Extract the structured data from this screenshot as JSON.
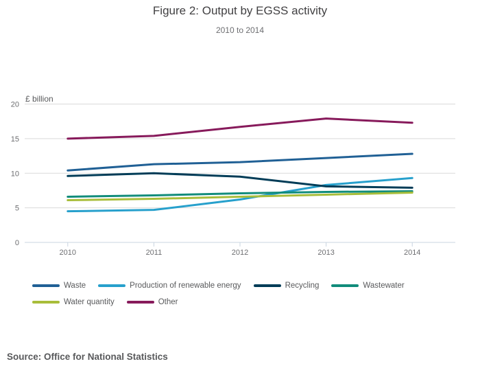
{
  "header": {
    "title": "Figure 2: Output by EGSS activity",
    "subtitle": "2010 to 2014"
  },
  "source": {
    "label": "Source: Office for National Statistics"
  },
  "chart_data": {
    "type": "line",
    "x": [
      2010,
      2011,
      2012,
      2013,
      2014
    ],
    "series": [
      {
        "name": "Waste",
        "color": "#206095",
        "values": [
          10.4,
          11.3,
          11.6,
          12.2,
          12.8
        ]
      },
      {
        "name": "Production of renewable energy",
        "color": "#27A0CC",
        "values": [
          4.5,
          4.7,
          6.2,
          8.3,
          9.3
        ]
      },
      {
        "name": "Recycling",
        "color": "#003C57",
        "values": [
          9.6,
          10.0,
          9.5,
          8.1,
          7.9
        ]
      },
      {
        "name": "Wastewater",
        "color": "#118C7B",
        "values": [
          6.6,
          6.8,
          7.1,
          7.3,
          7.4
        ]
      },
      {
        "name": "Water quantity",
        "color": "#A8BD3A",
        "values": [
          6.1,
          6.3,
          6.6,
          6.9,
          7.2
        ]
      },
      {
        "name": "Other",
        "color": "#871A5B",
        "values": [
          15.0,
          15.4,
          16.7,
          17.9,
          17.3
        ]
      }
    ],
    "title": "Figure 2: Output by EGSS activity",
    "subtitle": "2010 to 2014",
    "xlabel": "",
    "ylabel": "£ billion",
    "ylim": [
      0,
      20
    ],
    "yticks": [
      0,
      5,
      10,
      15,
      20
    ],
    "grid": true,
    "legend_position": "bottom"
  }
}
